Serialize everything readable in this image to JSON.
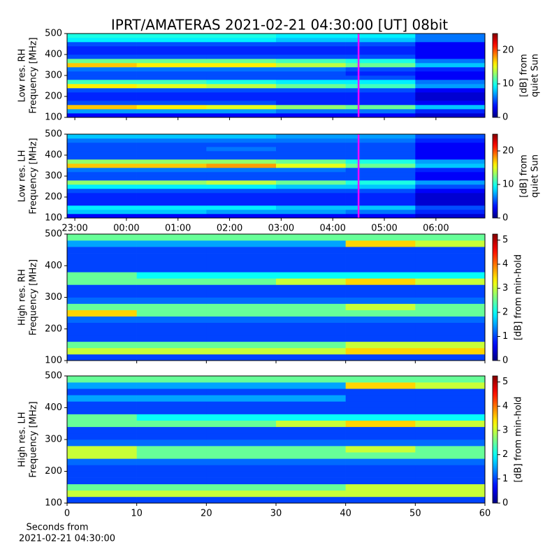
{
  "title": "IPRT/AMATERAS 2021-02-21 04:30:00 [UT]   08bit",
  "x_label": [
    "Seconds from",
    "2021-02-21 04:30:00"
  ],
  "chart_data": [
    {
      "type": "heatmap",
      "colormap": "jet",
      "ylabel": [
        "Low res. RH",
        "Frequency [MHz]"
      ],
      "ylim": [
        100,
        500
      ],
      "yticks": [
        100,
        200,
        300,
        400,
        500
      ],
      "xlim": [
        22.85,
        30.95
      ],
      "show_xtick_labels": false,
      "xticks": [
        {
          "value": 23,
          "label": "23:00"
        },
        {
          "value": 24,
          "label": "00:00"
        },
        {
          "value": 25,
          "label": "01:00"
        },
        {
          "value": 26,
          "label": "02:00"
        },
        {
          "value": 27,
          "label": "03:00"
        },
        {
          "value": 28,
          "label": "04:00"
        },
        {
          "value": 29,
          "label": "05:00"
        },
        {
          "value": 30,
          "label": "06:00"
        }
      ],
      "xbins": [
        22.85,
        24.2,
        25.55,
        26.9,
        28.25,
        29.6,
        30.95
      ],
      "ybins": [
        100,
        120,
        140,
        160,
        180,
        200,
        220,
        240,
        260,
        280,
        300,
        320,
        340,
        360,
        380,
        400,
        420,
        440,
        460,
        480,
        500
      ],
      "z": [
        [
          3,
          3,
          3,
          3,
          3,
          2
        ],
        [
          7,
          7,
          7,
          6,
          6,
          4
        ],
        [
          17,
          16,
          15,
          13,
          12,
          8
        ],
        [
          5,
          5,
          5,
          4,
          4,
          3
        ],
        [
          4,
          4,
          4,
          4,
          4,
          2
        ],
        [
          4,
          4,
          4,
          4,
          4,
          2
        ],
        [
          5,
          5,
          5,
          5,
          5,
          3
        ],
        [
          16,
          15,
          14,
          12,
          11,
          7
        ],
        [
          11,
          11,
          10,
          9,
          9,
          6
        ],
        [
          5,
          5,
          5,
          5,
          5,
          3
        ],
        [
          5,
          5,
          5,
          5,
          4,
          3
        ],
        [
          6,
          6,
          6,
          6,
          5,
          4
        ],
        [
          17,
          16,
          16,
          14,
          12,
          8
        ],
        [
          12,
          12,
          12,
          11,
          10,
          6
        ],
        [
          5,
          5,
          5,
          5,
          5,
          3
        ],
        [
          4,
          4,
          4,
          4,
          4,
          3
        ],
        [
          4,
          4,
          4,
          4,
          4,
          3
        ],
        [
          5,
          5,
          5,
          5,
          5,
          3
        ],
        [
          9,
          9,
          9,
          8,
          8,
          6
        ],
        [
          10,
          10,
          10,
          9,
          9,
          6
        ]
      ],
      "clim": [
        0,
        25
      ],
      "cticks": [
        0,
        10,
        20
      ],
      "clabel": [
        "[dB] from",
        "quiet Sun"
      ],
      "vline": {
        "x": 28.5,
        "color": "#ff00ff"
      }
    },
    {
      "type": "heatmap",
      "colormap": "jet",
      "ylabel": [
        "Low res. LH",
        "Frequency [MHz]"
      ],
      "ylim": [
        100,
        500
      ],
      "yticks": [
        100,
        200,
        300,
        400,
        500
      ],
      "xlim": [
        22.85,
        30.95
      ],
      "show_xtick_labels": true,
      "xticks": [
        {
          "value": 23,
          "label": "23:00"
        },
        {
          "value": 24,
          "label": "00:00"
        },
        {
          "value": 25,
          "label": "01:00"
        },
        {
          "value": 26,
          "label": "02:00"
        },
        {
          "value": 27,
          "label": "03:00"
        },
        {
          "value": 28,
          "label": "04:00"
        },
        {
          "value": 29,
          "label": "05:00"
        },
        {
          "value": 30,
          "label": "06:00"
        }
      ],
      "xbins": [
        22.85,
        24.2,
        25.55,
        26.9,
        28.25,
        29.6,
        30.95
      ],
      "ybins": [
        100,
        120,
        140,
        160,
        180,
        200,
        220,
        240,
        260,
        280,
        300,
        320,
        340,
        360,
        380,
        400,
        420,
        440,
        460,
        480,
        500
      ],
      "z": [
        [
          3,
          3,
          3,
          3,
          3,
          2
        ],
        [
          8,
          8,
          7,
          7,
          6,
          4
        ],
        [
          9,
          9,
          9,
          8,
          8,
          5
        ],
        [
          4,
          4,
          4,
          4,
          4,
          2
        ],
        [
          4,
          4,
          4,
          4,
          4,
          2
        ],
        [
          4,
          4,
          4,
          4,
          4,
          2
        ],
        [
          5,
          5,
          5,
          5,
          5,
          3
        ],
        [
          9,
          9,
          9,
          8,
          8,
          5
        ],
        [
          13,
          13,
          14,
          12,
          10,
          7
        ],
        [
          5,
          5,
          5,
          5,
          5,
          3
        ],
        [
          5,
          5,
          5,
          5,
          5,
          3
        ],
        [
          6,
          6,
          6,
          6,
          5,
          4
        ],
        [
          17,
          17,
          18,
          15,
          12,
          8
        ],
        [
          13,
          13,
          13,
          12,
          10,
          7
        ],
        [
          5,
          5,
          5,
          5,
          5,
          3
        ],
        [
          5,
          5,
          5,
          5,
          5,
          3
        ],
        [
          5,
          5,
          6,
          5,
          5,
          3
        ],
        [
          5,
          5,
          5,
          5,
          5,
          3
        ],
        [
          6,
          6,
          6,
          6,
          6,
          4
        ],
        [
          8,
          8,
          8,
          7,
          7,
          5
        ]
      ],
      "clim": [
        0,
        25
      ],
      "cticks": [
        0,
        10,
        20
      ],
      "clabel": [
        "[dB] from",
        "quiet Sun"
      ],
      "vline": {
        "x": 28.5,
        "color": "#ff00ff"
      }
    },
    {
      "type": "heatmap",
      "colormap": "jet",
      "ylabel": [
        "High res. RH",
        "Frequency [MHz]"
      ],
      "ylim": [
        100,
        500
      ],
      "yticks": [
        100,
        200,
        300,
        400,
        500
      ],
      "xlim": [
        0,
        60
      ],
      "show_xtick_labels": false,
      "xticks": [
        0,
        10,
        20,
        30,
        40,
        50,
        60
      ],
      "xbins": [
        0,
        10,
        20,
        30,
        40,
        50,
        60
      ],
      "ybins": [
        100,
        120,
        140,
        160,
        180,
        200,
        220,
        240,
        260,
        280,
        300,
        320,
        340,
        360,
        380,
        400,
        420,
        440,
        460,
        480,
        500
      ],
      "z": [
        [
          1,
          1,
          1,
          1,
          1,
          1
        ],
        [
          3,
          3,
          3,
          3,
          3.5,
          3.5
        ],
        [
          2.5,
          2.5,
          2.5,
          2.5,
          3,
          3
        ],
        [
          1,
          1,
          1,
          1,
          1,
          1
        ],
        [
          1,
          1,
          1,
          1,
          1,
          1
        ],
        [
          1,
          1,
          1,
          1,
          1,
          1
        ],
        [
          1.2,
          1.2,
          1.2,
          1.2,
          1.2,
          1.2
        ],
        [
          3.5,
          2.5,
          2.5,
          2.5,
          2.5,
          2.5
        ],
        [
          2.5,
          2.5,
          2.5,
          2.5,
          3,
          2.5
        ],
        [
          1.2,
          1.2,
          1.2,
          1.2,
          1.2,
          1.2
        ],
        [
          1,
          1,
          1,
          1,
          1,
          1
        ],
        [
          1,
          1,
          1,
          1,
          1,
          1
        ],
        [
          2.5,
          2.5,
          2.5,
          3,
          3.5,
          3
        ],
        [
          2.5,
          2,
          2,
          2,
          2,
          2
        ],
        [
          1,
          1,
          1,
          1,
          1,
          1
        ],
        [
          1,
          1,
          1,
          1,
          1,
          1
        ],
        [
          1,
          1,
          1,
          1,
          1,
          1
        ],
        [
          1,
          1,
          1,
          1,
          1,
          1
        ],
        [
          1.5,
          1.5,
          1.5,
          1.5,
          3.5,
          3
        ],
        [
          2.5,
          2.5,
          2.5,
          2.5,
          2.5,
          2.5
        ]
      ],
      "clim": [
        0,
        5.25
      ],
      "cticks": [
        0,
        1,
        2,
        3,
        4,
        5
      ],
      "clabel": [
        "[dB] from min-hold"
      ]
    },
    {
      "type": "heatmap",
      "colormap": "jet",
      "ylabel": [
        "High res. LH",
        "Frequency [MHz]"
      ],
      "ylim": [
        100,
        500
      ],
      "yticks": [
        100,
        200,
        300,
        400,
        500
      ],
      "xlim": [
        0,
        60
      ],
      "show_xtick_labels": true,
      "xticks": [
        0,
        10,
        20,
        30,
        40,
        50,
        60
      ],
      "xbins": [
        0,
        10,
        20,
        30,
        40,
        50,
        60
      ],
      "ybins": [
        100,
        120,
        140,
        160,
        180,
        200,
        220,
        240,
        260,
        280,
        300,
        320,
        340,
        360,
        380,
        400,
        420,
        440,
        460,
        480,
        500
      ],
      "z": [
        [
          1,
          1,
          1,
          1,
          1,
          1
        ],
        [
          3,
          3,
          3,
          3,
          3,
          3
        ],
        [
          2.5,
          2.5,
          2.5,
          2.5,
          3,
          3
        ],
        [
          1,
          1,
          1,
          1,
          1,
          1
        ],
        [
          1,
          1,
          1,
          1,
          1,
          1
        ],
        [
          1,
          1,
          1,
          1,
          1,
          1
        ],
        [
          1.2,
          1.2,
          1.2,
          1.2,
          1.2,
          1.2
        ],
        [
          3,
          2.5,
          2.5,
          2.5,
          2.5,
          2.5
        ],
        [
          3,
          2.5,
          2.5,
          2.5,
          3,
          2.5
        ],
        [
          1.2,
          1.2,
          1.2,
          1.2,
          1.2,
          1.2
        ],
        [
          1,
          1,
          1,
          1,
          1,
          1
        ],
        [
          1,
          1,
          1,
          1,
          1,
          1
        ],
        [
          2.5,
          2.5,
          2.5,
          3,
          3.5,
          3
        ],
        [
          2.5,
          2,
          2,
          2,
          2,
          2
        ],
        [
          1,
          1,
          1,
          1,
          1,
          1
        ],
        [
          1,
          1,
          1,
          1,
          1,
          1
        ],
        [
          1.5,
          1.5,
          1.5,
          1.5,
          1,
          1
        ],
        [
          1,
          1,
          1,
          1,
          1,
          1
        ],
        [
          1.5,
          1.5,
          1.5,
          1.5,
          3.5,
          3
        ],
        [
          2.5,
          2.5,
          2.5,
          2.5,
          2.5,
          2.5
        ]
      ],
      "clim": [
        0,
        5.25
      ],
      "cticks": [
        0,
        1,
        2,
        3,
        4,
        5
      ],
      "clabel": [
        "[dB] from min-hold"
      ]
    }
  ]
}
